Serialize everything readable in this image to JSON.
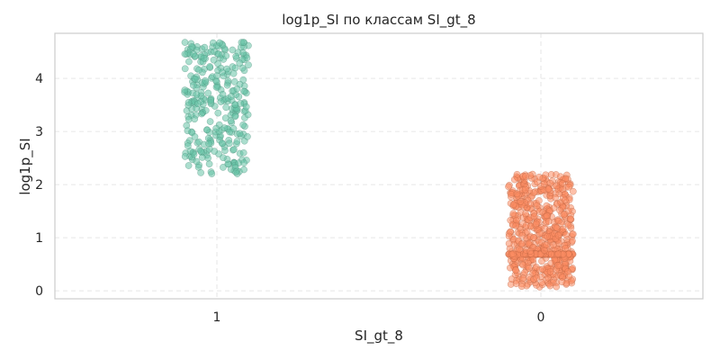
{
  "chart_data": {
    "type": "scatter",
    "title": "log1p_SI по классам SI_gt_8",
    "xlabel": "SI_gt_8",
    "ylabel": "log1p_SI",
    "categories": [
      "1",
      "0"
    ],
    "y_ticks": [
      "0",
      "1",
      "2",
      "3",
      "4"
    ],
    "ylim": [
      -0.15,
      4.85
    ],
    "grid": true,
    "series": [
      {
        "category": "1",
        "color": "#66c2a5",
        "edge_color": "#4a8c78",
        "count": 300,
        "y_range": [
          2.2,
          4.68
        ],
        "jitter": 0.1,
        "seed": 17
      },
      {
        "category": "0",
        "color": "#fc8d62",
        "edge_color": "#b8613f",
        "count": 700,
        "y_range": [
          0.07,
          2.2
        ],
        "heavy_value": 0.69,
        "heavy_fraction": 0.17,
        "jitter": 0.1,
        "seed": 41
      }
    ]
  }
}
